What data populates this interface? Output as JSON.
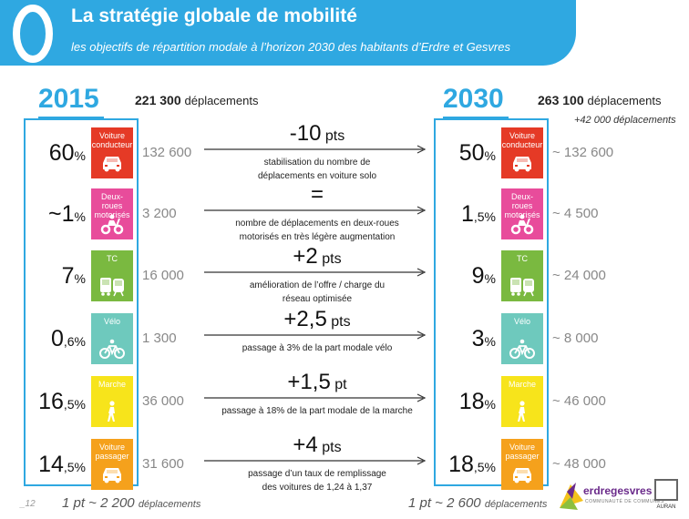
{
  "header": {
    "chapter": "0",
    "title": "La stratégie globale de mobilité",
    "subtitle": "les objectifs de répartition modale à l’horizon 2030 des habitants d’Erdre et Gesvres"
  },
  "left": {
    "year": "2015",
    "trips_value": "221 300",
    "trips_unit": "déplacements",
    "footnote_main": "1 pt ~ 2 200",
    "footnote_unit": "déplacements"
  },
  "right": {
    "year": "2030",
    "trips_value": "263 100",
    "trips_unit": "déplacements",
    "trips_add": "+42 000 déplacements",
    "footnote_main": "1 pt ~ 2 600",
    "footnote_unit": "déplacements"
  },
  "rows": [
    {
      "mode": "Voiture conducteur",
      "color": "#e53a26",
      "icon": "car-icon",
      "p15_main": "60",
      "p15_tail": "%",
      "n15": "132 600",
      "change_main": "-10",
      "change_unit": " pts",
      "desc1": "stabilisation du nombre de",
      "desc2": "déplacements en voiture solo",
      "p30_main": "50",
      "p30_tail": "%",
      "n30": "~ 132 600"
    },
    {
      "mode": "Deux-roues motorisés",
      "color": "#e84c9b",
      "icon": "scooter-icon",
      "p15_main": "~1",
      "p15_tail": "%",
      "n15": "3 200",
      "change_main": "=",
      "change_unit": "",
      "desc1": "nombre de déplacements en deux-roues",
      "desc2": "motorisés en très légère augmentation",
      "p30_main": "1",
      "p30_tail": ",5%",
      "n30": "~ 4 500"
    },
    {
      "mode": "TC",
      "color": "#7ab940",
      "icon": "bus-tram-icon",
      "p15_main": "7",
      "p15_tail": "%",
      "n15": "16 000",
      "change_main": "+2",
      "change_unit": " pts",
      "desc1": "amélioration de l’offre / charge du",
      "desc2": "réseau optimisée",
      "p30_main": "9",
      "p30_tail": "%",
      "n30": "~ 24 000"
    },
    {
      "mode": "Vélo",
      "color": "#6ec9bd",
      "icon": "bicycle-icon",
      "p15_main": "0",
      "p15_tail": ",6%",
      "n15": "1 300",
      "change_main": "+2,5",
      "change_unit": " pts",
      "desc1": "passage à 3% de la part modale vélo",
      "desc2": "",
      "p30_main": "3",
      "p30_tail": "%",
      "n30": "~ 8 000"
    },
    {
      "mode": "Marche",
      "color": "#f7e41b",
      "icon": "pedestrian-icon",
      "p15_main": "16",
      "p15_tail": ",5%",
      "n15": "36 000",
      "change_main": "+1,5",
      "change_unit": " pt",
      "desc1": "passage à 18% de la part modale de la marche",
      "desc2": "",
      "p30_main": "18",
      "p30_tail": "%",
      "n30": "~ 46 000"
    },
    {
      "mode": "Voiture passager",
      "color": "#f5a11c",
      "icon": "car-passenger-icon",
      "p15_main": "14",
      "p15_tail": ",5%",
      "n15": "31 600",
      "change_main": "+4",
      "change_unit": " pts",
      "desc1": "passage d’un taux de remplissage",
      "desc2": "des voitures de 1,24 à 1,37",
      "p30_main": "18",
      "p30_tail": ",5%",
      "n30": "~ 48 000"
    }
  ],
  "footer": {
    "page_number": "_12",
    "logo_name": "erdregesvres",
    "logo_tagline": "COMMUNAUTÉ DE COMMUNES",
    "agency": "AURAN"
  },
  "colors": {
    "accent": "#2fa8e1"
  }
}
